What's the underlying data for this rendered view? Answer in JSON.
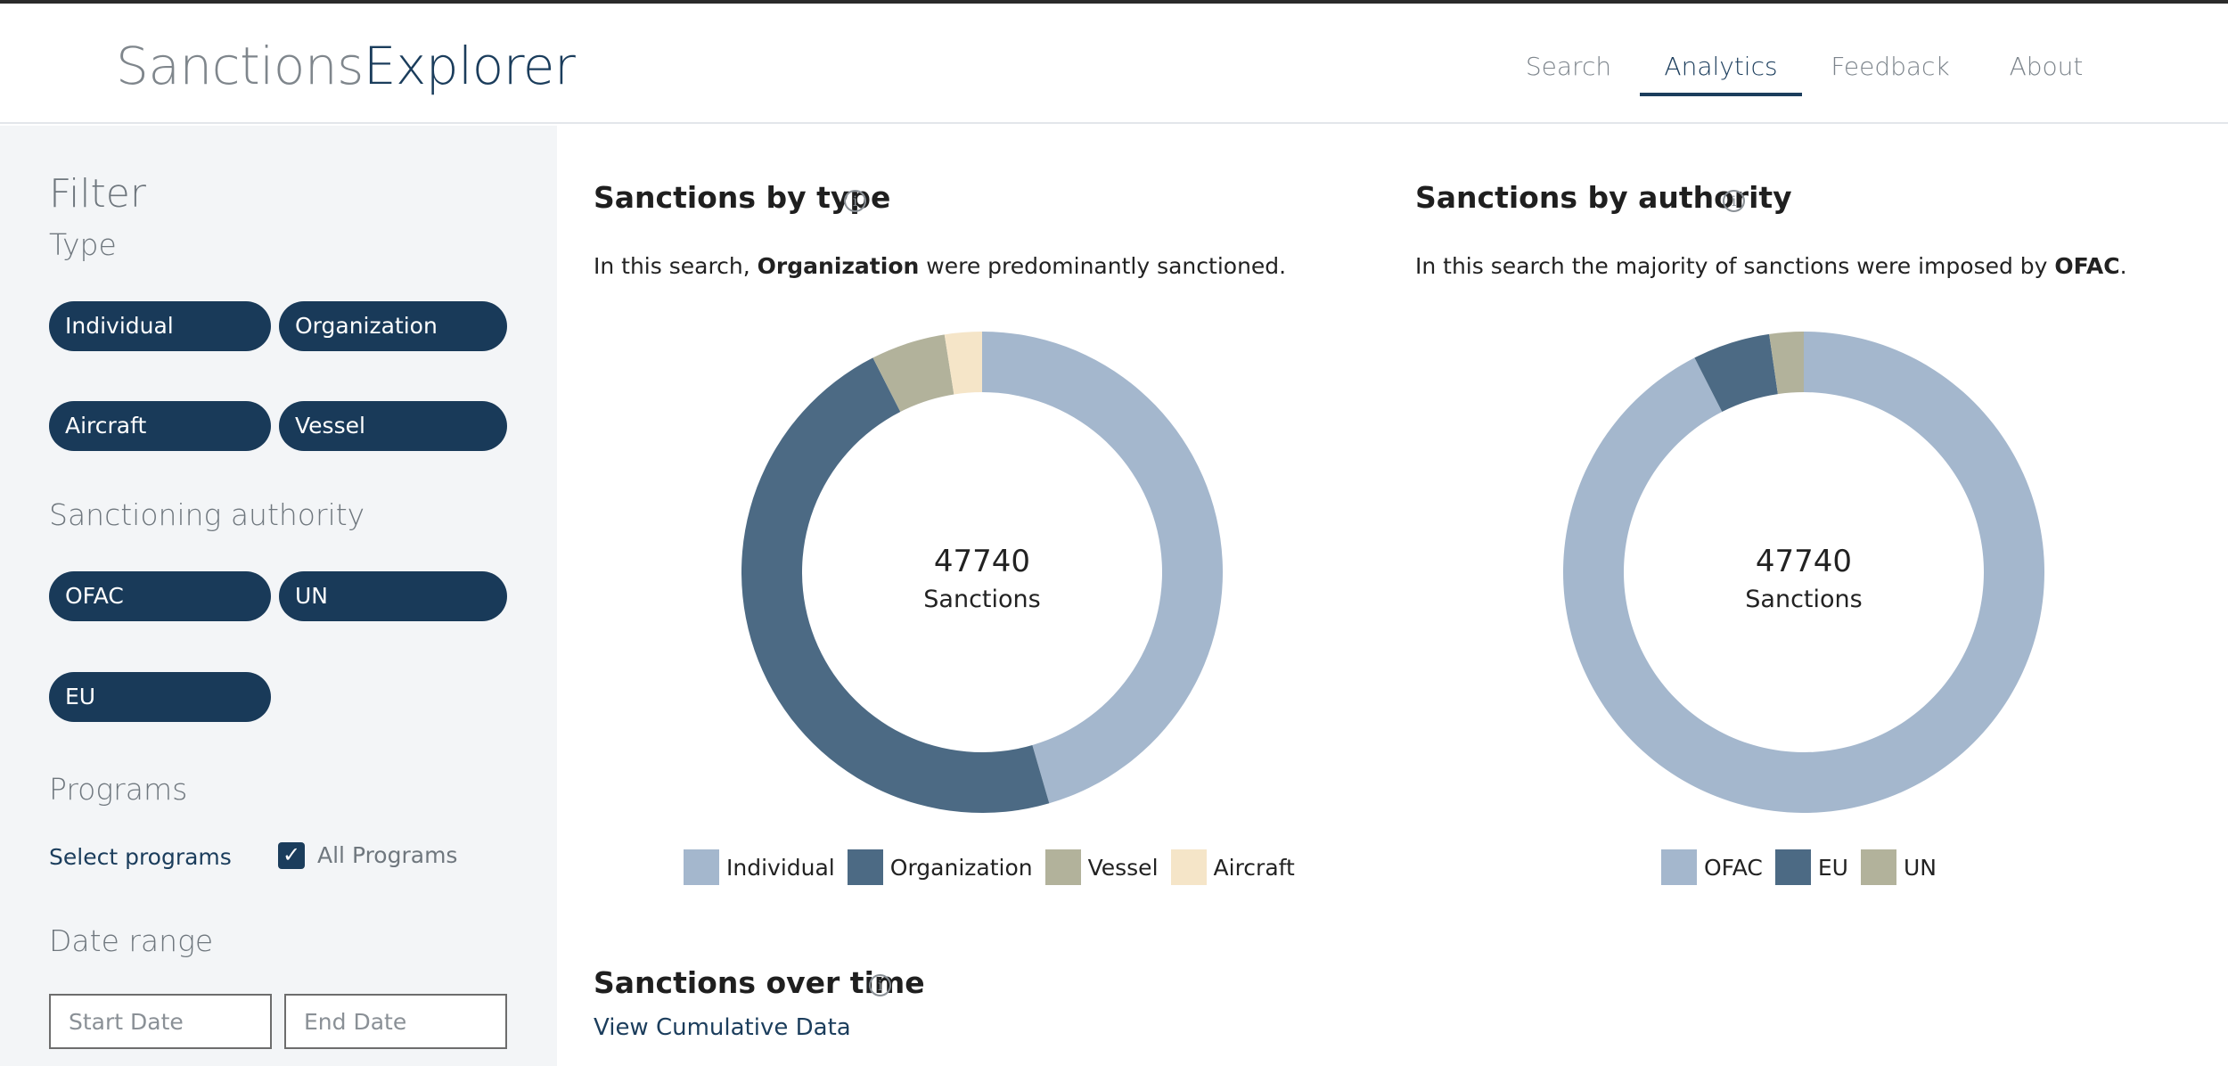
{
  "header": {
    "logo_part1": "Sanctions",
    "logo_part2": "Explorer",
    "nav": [
      {
        "label": "Search",
        "active": false
      },
      {
        "label": "Analytics",
        "active": true
      },
      {
        "label": "Feedback",
        "active": false
      },
      {
        "label": "About",
        "active": false
      }
    ]
  },
  "sidebar": {
    "filter_title": "Filter",
    "type_title": "Type",
    "type_pills": [
      "Individual",
      "Organization",
      "Aircraft",
      "Vessel"
    ],
    "authority_title": "Sanctioning authority",
    "authority_pills": [
      "OFAC",
      "UN",
      "EU"
    ],
    "programs_title": "Programs",
    "select_programs": "Select programs",
    "all_programs_label": "All Programs",
    "all_programs_checked": true,
    "date_title": "Date range",
    "start_placeholder": "Start Date",
    "end_placeholder": "End Date"
  },
  "main": {
    "type_section": {
      "title": "Sanctions by type",
      "desc_prefix": "In this search, ",
      "desc_bold": "Organization",
      "desc_suffix": " were predominantly sanctioned.",
      "center_value": "47740",
      "center_label": "Sanctions"
    },
    "authority_section": {
      "title": "Sanctions by authority",
      "desc_prefix": "In this search the majority of sanctions were imposed by ",
      "desc_bold": "OFAC",
      "desc_suffix": ".",
      "center_value": "47740",
      "center_label": "Sanctions"
    },
    "time_section": {
      "title": "Sanctions over time",
      "view_link": "View Cumulative Data"
    }
  },
  "colors": {
    "navy": "#193a59",
    "light_blue": "#a4b7cd",
    "slate_blue": "#4c6a84",
    "khaki": "#b2b29b",
    "cream": "#f5e5c8"
  },
  "chart_data": [
    {
      "type": "pie",
      "title": "Sanctions by type",
      "total": 47740,
      "categories": [
        "Individual",
        "Organization",
        "Vessel",
        "Aircraft"
      ],
      "values": [
        45.5,
        47.0,
        5.0,
        2.5
      ],
      "unit": "percent (approx.)",
      "colors": [
        "#a4b7cd",
        "#4c6a84",
        "#b2b29b",
        "#f5e5c8"
      ],
      "legend_position": "bottom"
    },
    {
      "type": "pie",
      "title": "Sanctions by authority",
      "total": 47740,
      "categories": [
        "OFAC",
        "EU",
        "UN"
      ],
      "values": [
        92.5,
        5.2,
        2.3
      ],
      "unit": "percent (approx.)",
      "colors": [
        "#a4b7cd",
        "#4c6a84",
        "#b2b29b"
      ],
      "legend_position": "bottom"
    }
  ]
}
